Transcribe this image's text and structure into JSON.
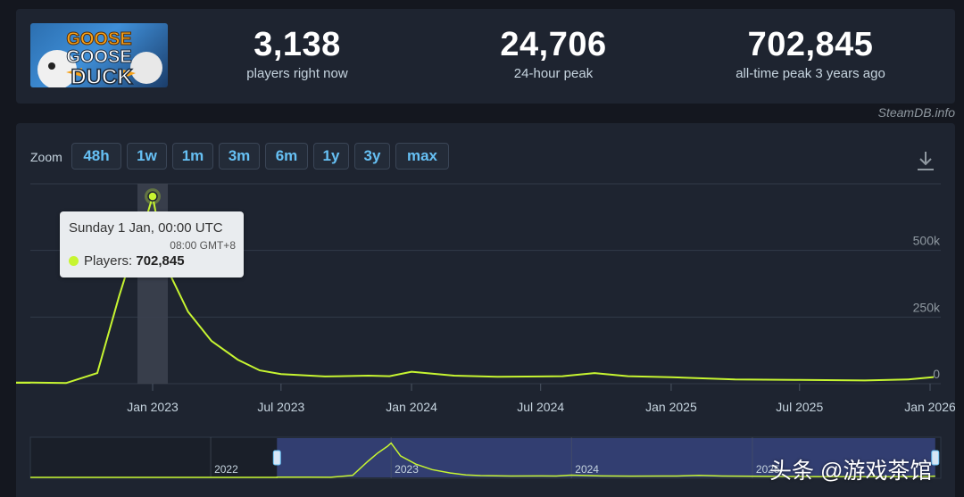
{
  "stats": [
    {
      "value": "3,138",
      "label": "players right now"
    },
    {
      "value": "24,706",
      "label": "24-hour peak"
    },
    {
      "value": "702,845",
      "label": "all-time peak 3 years ago"
    }
  ],
  "game": {
    "logo_line1": "GOOSE",
    "logo_line2": "GOOSE",
    "logo_line3": "DUCK"
  },
  "credit": "SteamDB.info",
  "zoom": {
    "label": "Zoom",
    "buttons": [
      "48h",
      "1w",
      "1m",
      "3m",
      "6m",
      "1y",
      "3y",
      "max"
    ]
  },
  "tooltip": {
    "date": "Sunday 1 Jan, 00:00 UTC",
    "local_time": "08:00 GMT+8",
    "series_label": "Players: ",
    "value": "702,845"
  },
  "watermark": "头条 @游戏茶馆",
  "colors": {
    "line": "#c7f531",
    "accent": "#66c0f4",
    "panel": "#1e2430"
  },
  "chart_data": {
    "type": "line",
    "series": [
      {
        "name": "Players",
        "x": [
          "2022-05-15",
          "2022-07-15",
          "2022-09-01",
          "2022-10-15",
          "2022-11-15",
          "2022-12-05",
          "2022-12-25",
          "2023-01-01",
          "2023-01-20",
          "2023-02-20",
          "2023-03-25",
          "2023-05-01",
          "2023-06-01",
          "2023-07-01",
          "2023-09-01",
          "2023-11-01",
          "2023-12-01",
          "2024-01-01",
          "2024-03-01",
          "2024-05-01",
          "2024-07-01",
          "2024-08-01",
          "2024-09-15",
          "2024-11-01",
          "2025-01-01",
          "2025-04-01",
          "2025-07-01",
          "2025-10-01",
          "2025-12-01",
          "2026-01-06"
        ],
        "y": [
          3500,
          4500,
          2500,
          40000,
          330000,
          500000,
          640000,
          702845,
          440000,
          270000,
          160000,
          90000,
          50000,
          36000,
          27000,
          30000,
          28000,
          45000,
          30000,
          26000,
          27000,
          28000,
          40000,
          28000,
          24000,
          16000,
          14000,
          12000,
          16000,
          24706
        ]
      }
    ],
    "x_ticks": [
      "Jan 2023",
      "Jul 2023",
      "Jan 2024",
      "Jul 2024",
      "Jan 2025",
      "Jul 2025",
      "Jan 2026"
    ],
    "y_ticks": [
      "0",
      "250k",
      "500k"
    ],
    "ylim": [
      0,
      750000
    ],
    "navigator_labels": [
      "2022",
      "2023",
      "2024",
      "2025"
    ],
    "grid": true,
    "legend": "none",
    "highlight": "2023-01-01"
  }
}
